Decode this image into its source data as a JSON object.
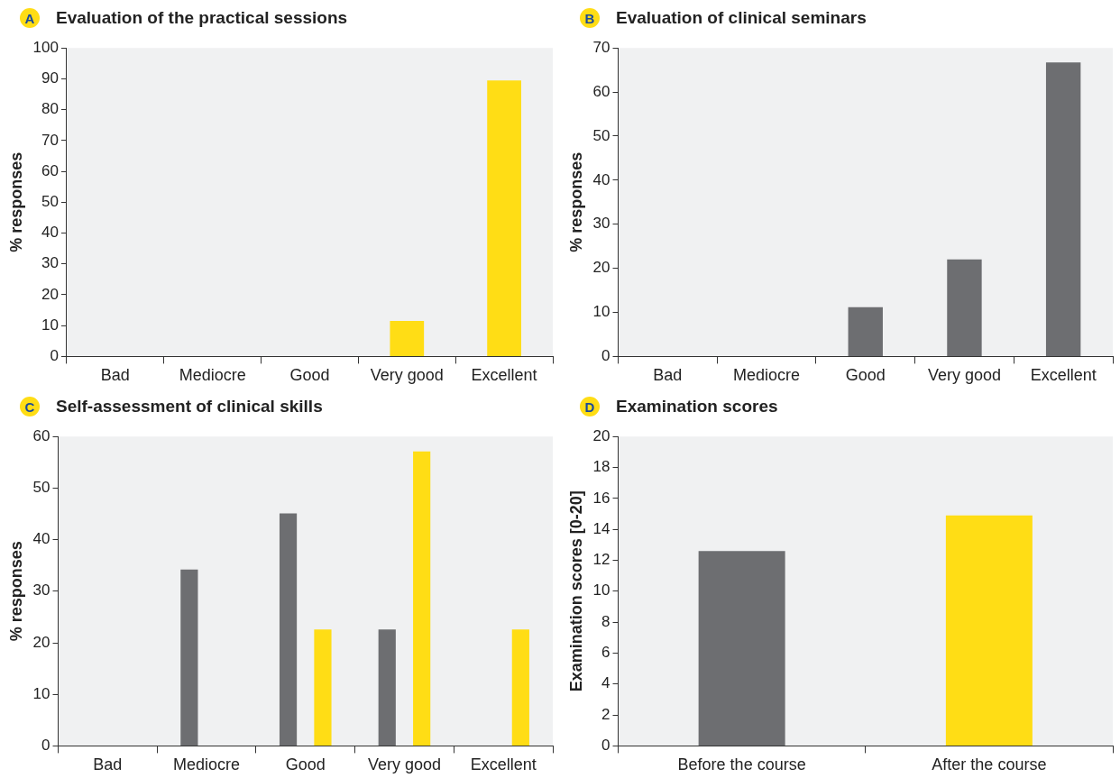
{
  "chart_data": [
    {
      "type": "bar",
      "title": "Evaluation of the practical sessions",
      "annotations": [
        "A"
      ],
      "ylabel": "% responses",
      "categories": [
        "Bad",
        "Mediocre",
        "Good",
        "Very good",
        "Excellent"
      ],
      "series": [
        {
          "color": "#ffdd15",
          "values": [
            0,
            0,
            0,
            11.5,
            89.5
          ]
        }
      ],
      "ylim": [
        0,
        100
      ],
      "yticks": [
        0,
        10,
        20,
        30,
        40,
        50,
        60,
        70,
        80,
        90,
        100
      ],
      "grid": false,
      "legend": false
    },
    {
      "type": "bar",
      "title": "Evaluation of clinical seminars",
      "annotations": [
        "B"
      ],
      "ylabel": "% responses",
      "categories": [
        "Bad",
        "Mediocre",
        "Good",
        "Very good",
        "Excellent"
      ],
      "series": [
        {
          "color": "#6d6e71",
          "values": [
            0,
            0,
            11.2,
            22,
            66.7
          ]
        }
      ],
      "ylim": [
        0,
        70
      ],
      "yticks": [
        0,
        10,
        20,
        30,
        40,
        50,
        60,
        70
      ],
      "grid": false,
      "legend": false
    },
    {
      "type": "bar",
      "title": "Self-assessment of clinical skills",
      "annotations": [
        "C"
      ],
      "ylabel": "% responses",
      "categories": [
        "Bad",
        "Mediocre",
        "Good",
        "Very good",
        "Excellent"
      ],
      "series": [
        {
          "color": "#6d6e71",
          "values": [
            0,
            34.2,
            45.1,
            22.6,
            0
          ]
        },
        {
          "color": "#ffdd15",
          "values": [
            0,
            0,
            22.6,
            57.1,
            22.6
          ]
        }
      ],
      "ylim": [
        0,
        60
      ],
      "yticks": [
        0,
        10,
        20,
        30,
        40,
        50,
        60
      ],
      "grid": false,
      "legend": false
    },
    {
      "type": "bar",
      "title": "Examination scores",
      "annotations": [
        "D"
      ],
      "ylabel": "Examination scores [0-20]",
      "categories": [
        "Before the course",
        "After the course"
      ],
      "series": [
        {
          "colors": [
            "#6d6e71",
            "#ffdd15"
          ],
          "values": [
            12.6,
            14.9
          ]
        }
      ],
      "ylim": [
        0,
        20
      ],
      "yticks": [
        0,
        2,
        4,
        6,
        8,
        10,
        12,
        14,
        16,
        18,
        20
      ],
      "grid": false,
      "legend": false
    }
  ]
}
